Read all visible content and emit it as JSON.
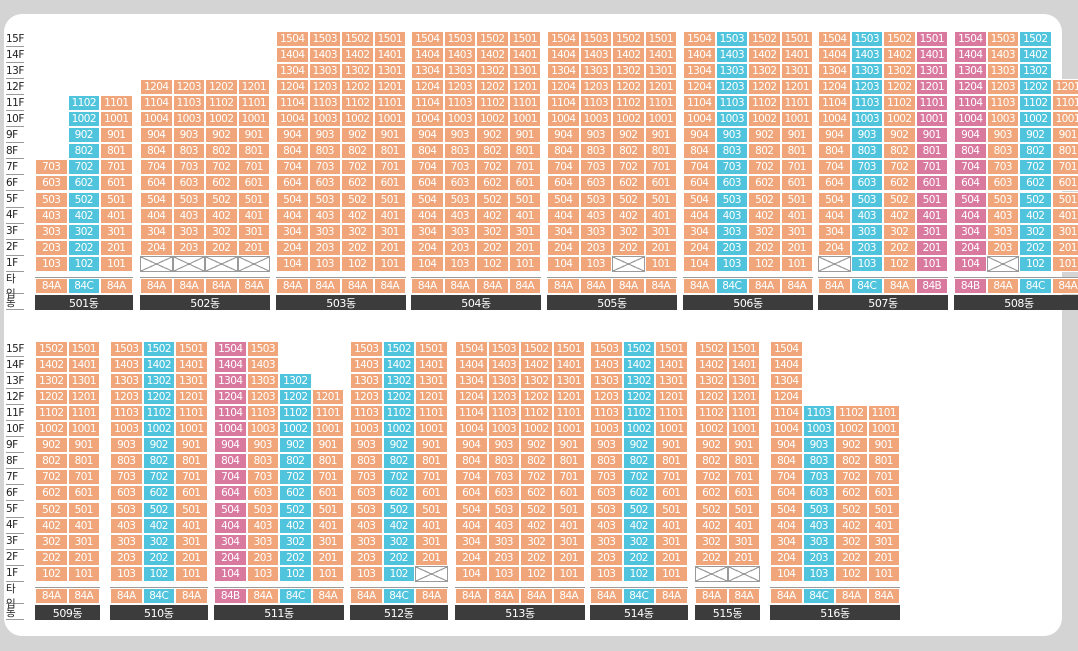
{
  "labels": {
    "type": "타입",
    "building": "동"
  },
  "floors": [
    "15F",
    "14F",
    "13F",
    "12F",
    "11F",
    "10F",
    "9F",
    "8F",
    "7F",
    "6F",
    "5F",
    "4F",
    "3F",
    "2F",
    "1F"
  ],
  "legend_colors": {
    "84A": "#f0a67a",
    "84B": "#d9799e",
    "84C": "#4fc4dc"
  },
  "buildings": [
    {
      "name": "501동",
      "row": 0,
      "types": [
        "84A",
        "84C",
        "84A"
      ],
      "cols": [
        {
          "type": "84A",
          "top": 7,
          "empty": []
        },
        {
          "type": "84C",
          "top": 11,
          "empty": []
        },
        {
          "type": "84A",
          "top": 11,
          "empty": []
        }
      ]
    },
    {
      "name": "502동",
      "row": 0,
      "types": [
        "84A",
        "84A",
        "84A",
        "84A"
      ],
      "cols": [
        {
          "type": "84A",
          "top": 12,
          "empty": [
            1
          ]
        },
        {
          "type": "84A",
          "top": 12,
          "empty": [
            1
          ]
        },
        {
          "type": "84A",
          "top": 12,
          "empty": [
            1
          ]
        },
        {
          "type": "84A",
          "top": 12,
          "empty": [
            1
          ]
        }
      ]
    },
    {
      "name": "503동",
      "row": 0,
      "types": [
        "84A",
        "84A",
        "84A",
        "84A"
      ],
      "cols": [
        {
          "type": "84A",
          "top": 15,
          "empty": []
        },
        {
          "type": "84A",
          "top": 15,
          "empty": []
        },
        {
          "type": "84A",
          "top": 15,
          "empty": []
        },
        {
          "type": "84A",
          "top": 15,
          "empty": []
        }
      ]
    },
    {
      "name": "504동",
      "row": 0,
      "types": [
        "84A",
        "84A",
        "84A",
        "84A"
      ],
      "cols": [
        {
          "type": "84A",
          "top": 15,
          "empty": []
        },
        {
          "type": "84A",
          "top": 15,
          "empty": []
        },
        {
          "type": "84A",
          "top": 15,
          "empty": []
        },
        {
          "type": "84A",
          "top": 15,
          "empty": []
        }
      ]
    },
    {
      "name": "505동",
      "row": 0,
      "types": [
        "84A",
        "84A",
        "84A",
        "84A"
      ],
      "cols": [
        {
          "type": "84A",
          "top": 15,
          "empty": []
        },
        {
          "type": "84A",
          "top": 15,
          "empty": []
        },
        {
          "type": "84A",
          "top": 15,
          "empty": [
            1
          ]
        },
        {
          "type": "84A",
          "top": 15,
          "empty": []
        }
      ]
    },
    {
      "name": "506동",
      "row": 0,
      "types": [
        "84A",
        "84C",
        "84A",
        "84A"
      ],
      "cols": [
        {
          "type": "84A",
          "top": 15,
          "empty": []
        },
        {
          "type": "84C",
          "top": 15,
          "empty": []
        },
        {
          "type": "84A",
          "top": 15,
          "empty": []
        },
        {
          "type": "84A",
          "top": 15,
          "empty": []
        }
      ]
    },
    {
      "name": "507동",
      "row": 0,
      "types": [
        "84A",
        "84C",
        "84A",
        "84B"
      ],
      "cols": [
        {
          "type": "84A",
          "top": 15,
          "empty": [
            1
          ]
        },
        {
          "type": "84C",
          "top": 15,
          "empty": []
        },
        {
          "type": "84A",
          "top": 15,
          "empty": []
        },
        {
          "type": "84B",
          "top": 15,
          "empty": []
        }
      ]
    },
    {
      "name": "508동",
      "row": 0,
      "types": [
        "84B",
        "84A",
        "84C",
        "84A"
      ],
      "cols": [
        {
          "type": "84B",
          "top": 15,
          "empty": []
        },
        {
          "type": "84A",
          "top": 15,
          "empty": [
            1
          ]
        },
        {
          "type": "84C",
          "top": 15,
          "empty": []
        },
        {
          "type": "84A",
          "top": 12,
          "empty": []
        }
      ]
    },
    {
      "name": "509동",
      "row": 1,
      "types": [
        "84A",
        "84A"
      ],
      "cols": [
        {
          "type": "84A",
          "top": 15,
          "empty": []
        },
        {
          "type": "84A",
          "top": 15,
          "empty": []
        }
      ]
    },
    {
      "name": "510동",
      "row": 1,
      "types": [
        "84A",
        "84C",
        "84A"
      ],
      "cols": [
        {
          "type": "84A",
          "top": 15,
          "empty": []
        },
        {
          "type": "84C",
          "top": 15,
          "empty": []
        },
        {
          "type": "84A",
          "top": 15,
          "empty": []
        }
      ]
    },
    {
      "name": "511동",
      "row": 1,
      "types": [
        "84B",
        "84A",
        "84C",
        "84A"
      ],
      "cols": [
        {
          "type": "84B",
          "top": 15,
          "empty": []
        },
        {
          "type": "84A",
          "top": 15,
          "empty": []
        },
        {
          "type": "84C",
          "top": 13,
          "empty": []
        },
        {
          "type": "84A",
          "top": 12,
          "empty": []
        }
      ]
    },
    {
      "name": "512동",
      "row": 1,
      "types": [
        "84A",
        "84C",
        "84A"
      ],
      "cols": [
        {
          "type": "84A",
          "top": 15,
          "empty": []
        },
        {
          "type": "84C",
          "top": 15,
          "empty": []
        },
        {
          "type": "84A",
          "top": 15,
          "empty": [
            1
          ]
        }
      ]
    },
    {
      "name": "513동",
      "row": 1,
      "types": [
        "84A",
        "84A",
        "84A",
        "84A"
      ],
      "cols": [
        {
          "type": "84A",
          "top": 15,
          "empty": []
        },
        {
          "type": "84A",
          "top": 15,
          "empty": []
        },
        {
          "type": "84A",
          "top": 15,
          "empty": []
        },
        {
          "type": "84A",
          "top": 15,
          "empty": []
        }
      ]
    },
    {
      "name": "514동",
      "row": 1,
      "types": [
        "84A",
        "84C",
        "84A"
      ],
      "cols": [
        {
          "type": "84A",
          "top": 15,
          "empty": []
        },
        {
          "type": "84C",
          "top": 15,
          "empty": []
        },
        {
          "type": "84A",
          "top": 15,
          "empty": []
        }
      ]
    },
    {
      "name": "515동",
      "row": 1,
      "types": [
        "84A",
        "84A"
      ],
      "cols": [
        {
          "type": "84A",
          "top": 15,
          "empty": [
            1
          ]
        },
        {
          "type": "84A",
          "top": 15,
          "empty": [
            1
          ]
        }
      ]
    },
    {
      "name": "516동",
      "row": 1,
      "types": [
        "84A",
        "84C",
        "84A",
        "84A"
      ],
      "cols": [
        {
          "type": "84A",
          "top": 15,
          "empty": []
        },
        {
          "type": "84C",
          "top": 11,
          "empty": []
        },
        {
          "type": "84A",
          "top": 11,
          "empty": []
        },
        {
          "type": "84A",
          "top": 11,
          "empty": []
        }
      ]
    }
  ]
}
